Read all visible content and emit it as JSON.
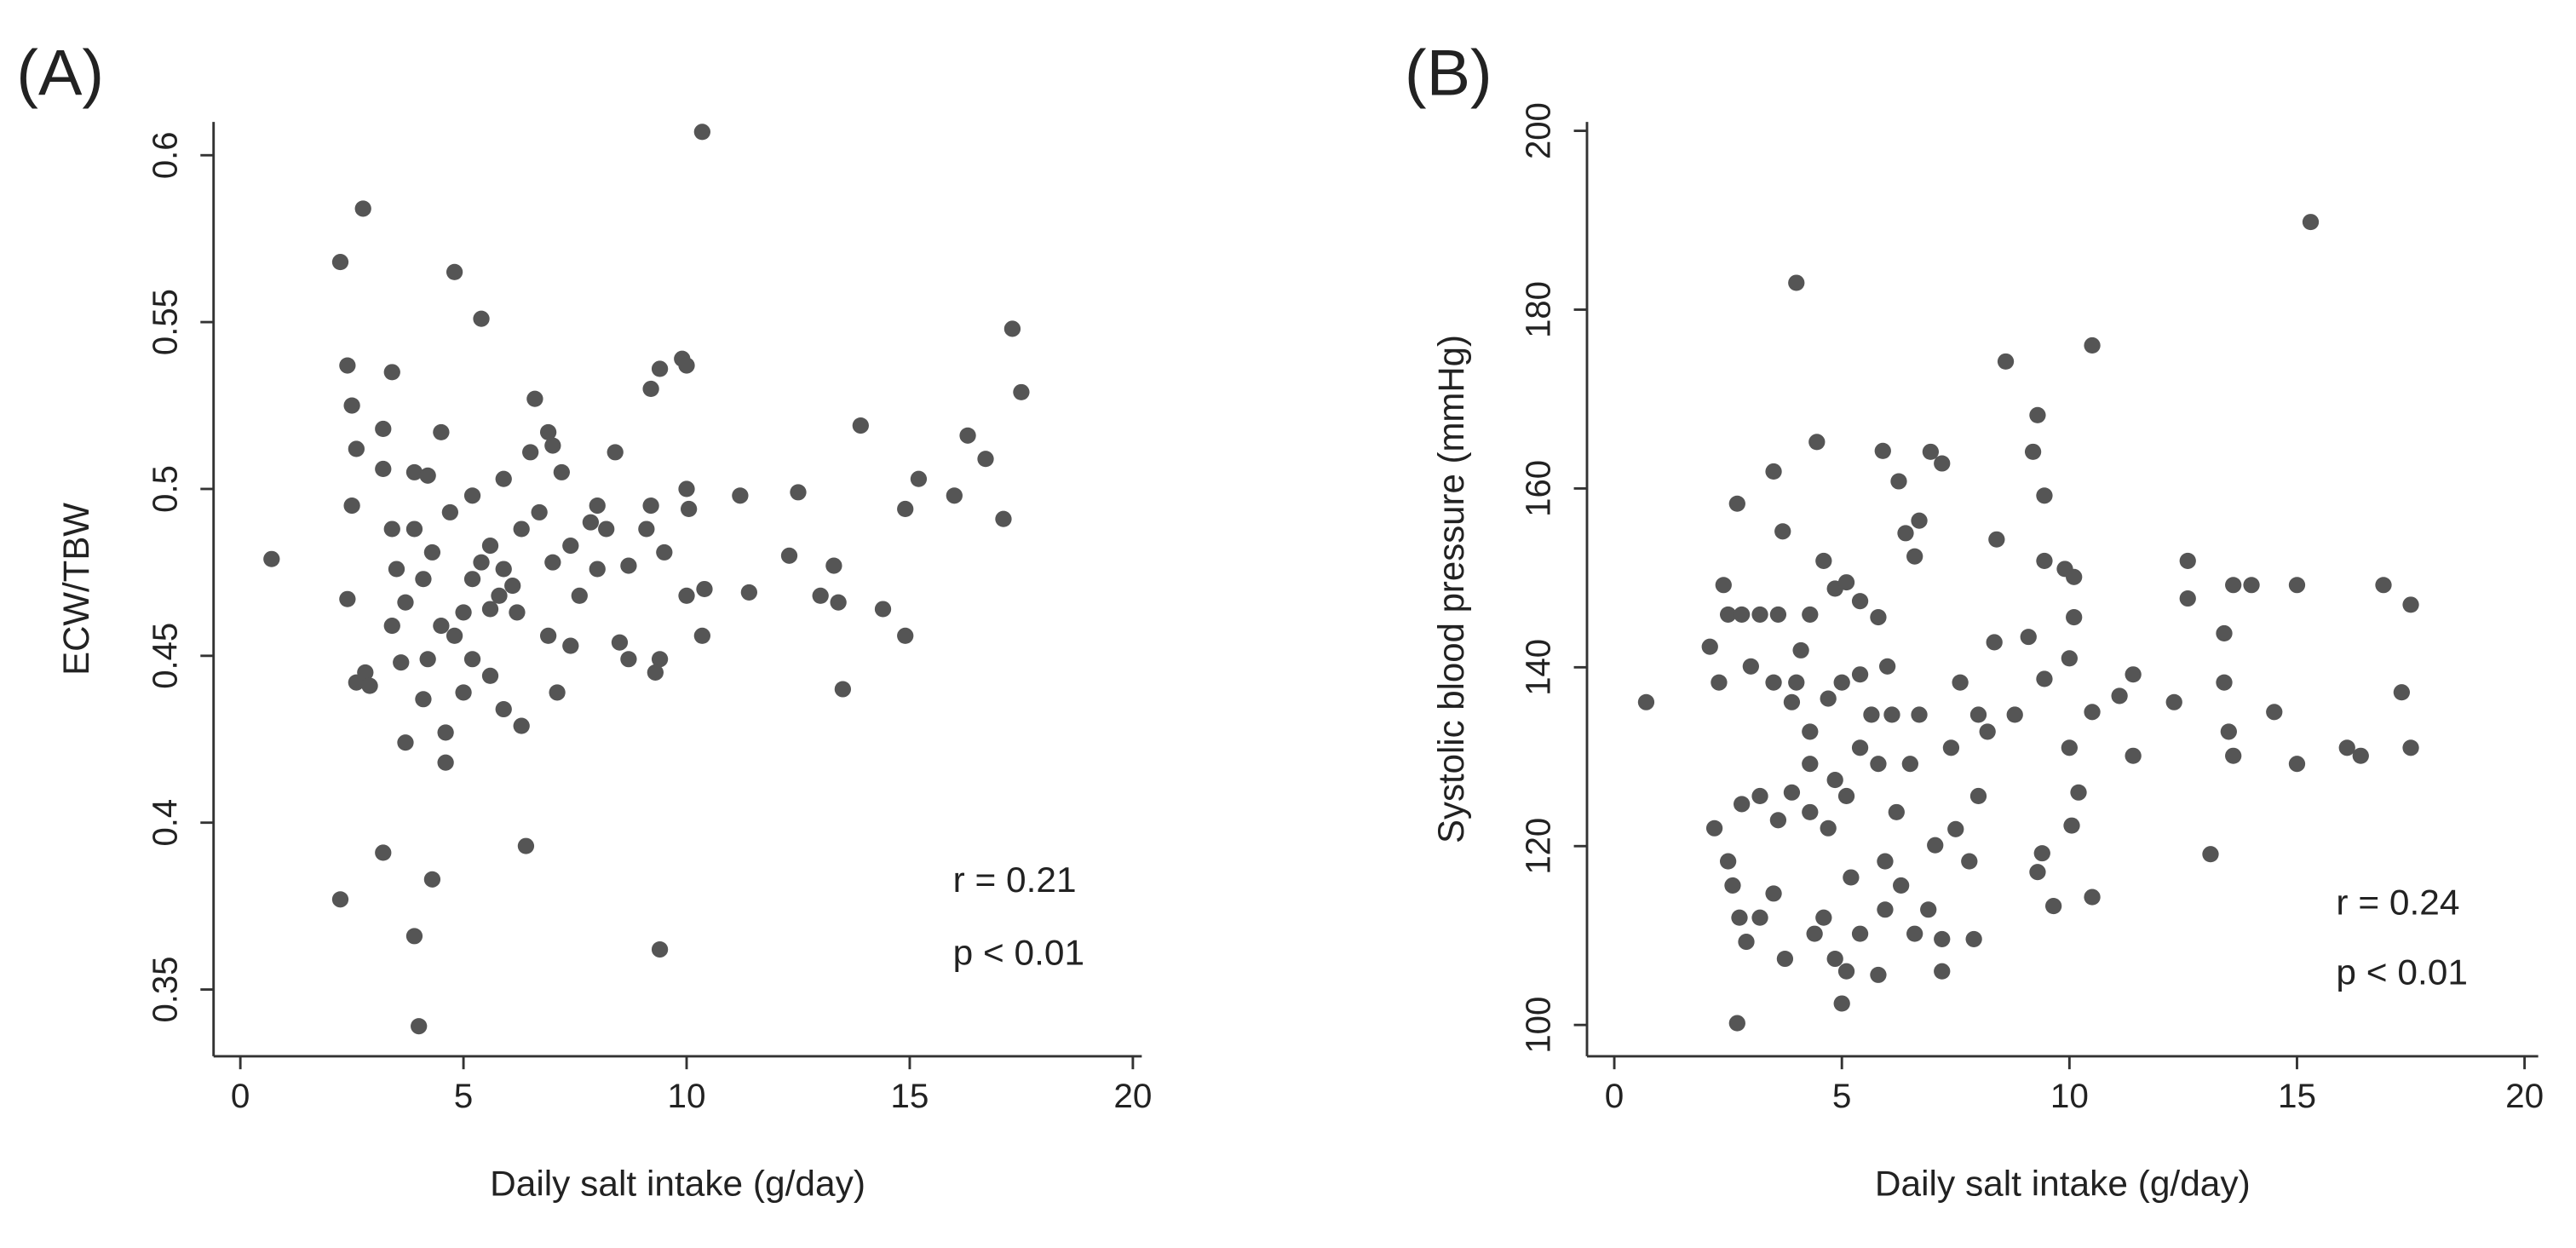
{
  "chart_data": [
    {
      "type": "scatter",
      "panel_label": "(A)",
      "x_label": "Daily salt intake (g/day)",
      "y_label": "ECW/TBW",
      "xlim": [
        -0.6,
        20.2
      ],
      "ylim": [
        0.33,
        0.61
      ],
      "xticks": [
        0,
        5,
        10,
        15,
        20
      ],
      "yticks": [
        0.35,
        0.4,
        0.45,
        0.5,
        0.55,
        0.6
      ],
      "color": "#555555",
      "annotations": [
        "r = 0.21",
        "p < 0.01"
      ],
      "x": [
        0.7,
        2.24,
        2.24,
        2.75,
        2.4,
        2.5,
        2.6,
        2.5,
        2.4,
        2.6,
        2.8,
        2.9,
        3.2,
        3.2,
        3.4,
        3.2,
        3.4,
        3.5,
        3.4,
        3.6,
        3.7,
        3.9,
        3.9,
        4.0,
        4.3,
        4.2,
        4.5,
        4.8,
        5.4,
        4.6,
        4.6,
        5.0,
        4.8,
        4.3,
        5.2,
        5.6,
        5.9,
        5.9,
        6.3,
        6.4,
        6.5,
        6.6,
        6.9,
        7.0,
        7.2,
        7.1,
        7.4,
        7.6,
        7.85,
        8.0,
        8.2,
        8.4,
        8.5,
        8.7,
        8.7,
        9.2,
        9.4,
        9.9,
        10.0,
        9.4,
        10.35,
        10.0,
        10.05,
        9.4,
        9.3,
        9.1,
        9.2,
        9.5,
        10.35,
        10.4,
        10.0,
        11.2,
        11.4,
        12.5,
        12.3,
        13.0,
        13.3,
        13.4,
        13.5,
        13.9,
        14.4,
        14.9,
        14.9,
        15.2,
        16.0,
        16.3,
        16.7,
        17.1,
        17.3,
        17.5,
        5.2,
        5.4,
        5.8,
        5.9,
        6.1,
        6.2,
        5.0,
        4.5,
        4.1,
        5.6,
        6.3,
        6.7,
        7.0,
        4.2,
        5.2,
        4.7,
        3.7,
        3.9,
        5.6,
        4.1,
        6.9,
        7.4,
        8.0
      ],
      "y": [
        0.479,
        0.377,
        0.568,
        0.584,
        0.537,
        0.525,
        0.512,
        0.495,
        0.467,
        0.442,
        0.445,
        0.441,
        0.518,
        0.391,
        0.535,
        0.506,
        0.488,
        0.476,
        0.459,
        0.448,
        0.424,
        0.505,
        0.366,
        0.339,
        0.383,
        0.504,
        0.517,
        0.565,
        0.551,
        0.427,
        0.418,
        0.439,
        0.456,
        0.481,
        0.498,
        0.464,
        0.503,
        0.434,
        0.429,
        0.393,
        0.511,
        0.527,
        0.517,
        0.513,
        0.505,
        0.439,
        0.483,
        0.468,
        0.49,
        0.495,
        0.488,
        0.511,
        0.454,
        0.477,
        0.449,
        0.53,
        0.536,
        0.539,
        0.537,
        0.362,
        0.607,
        0.5,
        0.494,
        0.449,
        0.445,
        0.488,
        0.495,
        0.481,
        0.456,
        0.47,
        0.468,
        0.498,
        0.469,
        0.499,
        0.48,
        0.468,
        0.477,
        0.466,
        0.44,
        0.519,
        0.464,
        0.456,
        0.494,
        0.503,
        0.498,
        0.516,
        0.509,
        0.491,
        0.548,
        0.529,
        0.473,
        0.478,
        0.468,
        0.476,
        0.471,
        0.463,
        0.463,
        0.459,
        0.473,
        0.483,
        0.488,
        0.493,
        0.478,
        0.449,
        0.449,
        0.493,
        0.466,
        0.488,
        0.444,
        0.437,
        0.456,
        0.453,
        0.476
      ]
    },
    {
      "type": "scatter",
      "panel_label": "(B)",
      "x_label": "Daily salt intake (g/day)",
      "y_label": "Systolic blood pressure (mmHg)",
      "xlim": [
        -0.6,
        20.3
      ],
      "ylim": [
        96.5,
        201
      ],
      "xticks": [
        0,
        5,
        10,
        15,
        20
      ],
      "yticks": [
        100,
        120,
        140,
        160,
        180,
        200
      ],
      "color": "#555555",
      "annotations": [
        "r = 0.24",
        "p < 0.01"
      ],
      "x": [
        0.7,
        2.7,
        2.7,
        4.0,
        4.45,
        3.5,
        3.7,
        2.4,
        2.5,
        2.8,
        3.2,
        3.6,
        2.1,
        2.3,
        3.0,
        3.5,
        3.9,
        4.1,
        4.3,
        4.6,
        4.85,
        5.1,
        5.4,
        5.8,
        5.9,
        6.25,
        6.4,
        6.6,
        6.95,
        7.2,
        6.7,
        6.0,
        6.1,
        5.4,
        4.85,
        4.3,
        3.9,
        3.6,
        3.2,
        2.8,
        2.2,
        2.5,
        2.6,
        2.75,
        2.9,
        3.2,
        3.5,
        3.75,
        4.4,
        4.6,
        4.85,
        5.0,
        5.1,
        5.4,
        5.8,
        5.95,
        6.3,
        6.6,
        6.9,
        7.2,
        7.2,
        7.05,
        7.5,
        7.8,
        7.9,
        8.0,
        8.2,
        8.35,
        8.4,
        8.6,
        8.8,
        9.1,
        9.3,
        9.2,
        9.45,
        9.45,
        9.45,
        9.4,
        9.3,
        9.65,
        9.9,
        10.1,
        10.0,
        10.1,
        10.0,
        10.2,
        10.05,
        10.5,
        10.5,
        10.5,
        11.1,
        11.4,
        11.4,
        12.3,
        12.6,
        12.6,
        13.1,
        13.4,
        13.4,
        13.5,
        13.6,
        13.6,
        14.0,
        14.5,
        15.0,
        15.0,
        15.3,
        16.1,
        16.4,
        16.9,
        17.3,
        17.5,
        17.5,
        4.3,
        4.7,
        5.1,
        5.65,
        5.8,
        6.2,
        6.5,
        6.7,
        7.4,
        7.6,
        8.0,
        4.3,
        4.7,
        4.0,
        5.0,
        5.4,
        5.95,
        5.2
      ],
      "y": [
        136.1,
        100.2,
        158.3,
        183,
        165.2,
        161.9,
        155.2,
        149.2,
        145.9,
        145.9,
        145.9,
        145.9,
        142.3,
        138.3,
        140.1,
        138.3,
        136.1,
        141.9,
        145.9,
        151.9,
        148.8,
        149.5,
        147.4,
        145.6,
        164.2,
        160.8,
        155.0,
        152.4,
        164.1,
        162.8,
        156.4,
        140.1,
        134.7,
        131.0,
        127.4,
        129.2,
        126.0,
        122.9,
        125.6,
        124.7,
        122.0,
        118.3,
        115.6,
        112.0,
        109.3,
        112.0,
        114.7,
        107.4,
        110.2,
        112.0,
        107.4,
        102.4,
        106.0,
        110.2,
        105.6,
        112.9,
        115.6,
        110.2,
        112.9,
        106.0,
        109.6,
        120.1,
        121.9,
        118.3,
        109.6,
        125.6,
        132.8,
        142.8,
        154.3,
        174.2,
        134.7,
        143.4,
        168.2,
        164.1,
        159.2,
        151.9,
        138.7,
        119.2,
        117.1,
        113.3,
        151.0,
        150.1,
        141.0,
        145.6,
        131.0,
        126.0,
        122.3,
        176.0,
        135.0,
        114.3,
        136.8,
        139.2,
        130.1,
        136.1,
        151.9,
        147.7,
        119.1,
        138.3,
        143.8,
        132.8,
        130.1,
        149.2,
        149.2,
        135.0,
        149.2,
        129.2,
        189.8,
        131.0,
        130.1,
        149.2,
        137.2,
        147.0,
        131.0,
        123.8,
        122.0,
        125.6,
        134.7,
        129.2,
        123.8,
        129.2,
        134.7,
        131.0,
        138.3,
        134.7,
        132.8,
        136.5,
        138.3,
        138.3,
        139.2,
        118.3,
        116.5
      ]
    }
  ]
}
